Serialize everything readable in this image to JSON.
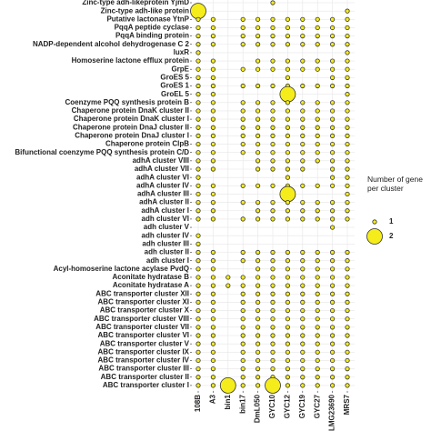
{
  "chart_data": {
    "type": "dotmatrix",
    "categories": [
      "108B",
      "A3",
      "bin1",
      "bin17",
      "DmL050",
      "GYC10",
      "GYC12",
      "GYC19",
      "GYC27",
      "LMG23690",
      "MRS7"
    ],
    "rows": [
      "Zinc-type adh-likeprotein YjmD",
      "Zinc-type adh-like protein",
      "Putative lactonase YtnP",
      "PqqA peptide cyclase",
      "PqqA binding protein",
      "NADP-dependent alcohol dehydrogenase C 2",
      "luxR",
      "Homoserine lactone efflux protein",
      "GrpE",
      "GroES 5",
      "GroES 1",
      "GroEL 5",
      "Coenzyme PQQ synthesis protein B",
      "Chaperone protein DnaK cluster II",
      "Chaperone protein DnaK cluster I",
      "Chaperone protein DnaJ cluster II",
      "Chaperone protein DnaJ cluster I",
      "Chaperone protein ClpB",
      "Bifunctional coenzyme PQQ synthesis protein C/D",
      "adhA cluster VIII",
      "adhA cluster VII",
      "adhA cluster VI",
      "adhA cluster IV",
      "adhA cluster III",
      "adhA cluster II",
      "adhA cluster I",
      "adh cluster VI",
      "adh cluster V",
      "adh cluster IV",
      "adh cluster III",
      "adh cluster II",
      "adh cluster I",
      "Acyl-homoserine lactone acylase PvdQ",
      "Aconitate hydratase B",
      "Aconitate hydratase A",
      "ABC transporter cluster XII",
      "ABC transporter cluster XI",
      "ABC transporter cluster X",
      "ABC transporter cluster VIII",
      "ABC transporter cluster VII",
      "ABC transporter cluster VI",
      "ABC transporter cluster V",
      "ABC transporter cluster IX",
      "ABC transporter cluster IV",
      "ABC transporter cluster III",
      "ABC transporter cluster II",
      "ABC transporter cluster I"
    ],
    "values": [
      [
        null,
        null,
        null,
        null,
        null,
        1,
        null,
        null,
        null,
        null,
        null
      ],
      [
        2,
        null,
        null,
        null,
        null,
        null,
        null,
        null,
        null,
        null,
        1
      ],
      [
        1,
        1,
        null,
        1,
        1,
        1,
        1,
        1,
        1,
        1,
        1
      ],
      [
        1,
        1,
        null,
        1,
        1,
        1,
        1,
        1,
        1,
        1,
        1
      ],
      [
        1,
        1,
        null,
        1,
        1,
        1,
        1,
        1,
        1,
        1,
        1
      ],
      [
        1,
        1,
        null,
        1,
        1,
        1,
        1,
        1,
        1,
        1,
        1
      ],
      [
        1,
        null,
        null,
        null,
        null,
        null,
        null,
        null,
        null,
        null,
        1
      ],
      [
        1,
        1,
        null,
        null,
        1,
        1,
        1,
        1,
        1,
        1,
        1
      ],
      [
        1,
        1,
        null,
        1,
        1,
        1,
        1,
        1,
        1,
        1,
        1
      ],
      [
        1,
        1,
        null,
        null,
        null,
        null,
        1,
        null,
        null,
        1,
        1
      ],
      [
        1,
        1,
        null,
        1,
        1,
        1,
        1,
        1,
        1,
        1,
        1
      ],
      [
        1,
        1,
        null,
        null,
        null,
        null,
        2,
        null,
        null,
        null,
        1
      ],
      [
        1,
        1,
        null,
        1,
        1,
        1,
        1,
        1,
        1,
        1,
        1
      ],
      [
        1,
        1,
        null,
        1,
        1,
        1,
        1,
        1,
        1,
        1,
        1
      ],
      [
        1,
        1,
        null,
        1,
        1,
        1,
        1,
        1,
        1,
        1,
        1
      ],
      [
        1,
        1,
        null,
        1,
        1,
        1,
        1,
        1,
        1,
        1,
        1
      ],
      [
        1,
        1,
        null,
        1,
        1,
        1,
        1,
        1,
        1,
        1,
        1
      ],
      [
        1,
        1,
        null,
        1,
        1,
        1,
        1,
        1,
        1,
        1,
        1
      ],
      [
        1,
        1,
        null,
        1,
        1,
        1,
        1,
        1,
        1,
        1,
        1
      ],
      [
        1,
        1,
        null,
        null,
        1,
        1,
        1,
        1,
        1,
        1,
        1
      ],
      [
        1,
        1,
        null,
        null,
        1,
        1,
        1,
        1,
        null,
        1,
        1
      ],
      [
        1,
        null,
        null,
        null,
        null,
        null,
        1,
        null,
        null,
        1,
        1
      ],
      [
        1,
        1,
        null,
        1,
        1,
        1,
        1,
        1,
        1,
        1,
        1
      ],
      [
        1,
        1,
        null,
        null,
        null,
        null,
        2,
        null,
        null,
        null,
        1
      ],
      [
        1,
        1,
        null,
        1,
        1,
        1,
        1,
        1,
        1,
        1,
        1
      ],
      [
        1,
        1,
        null,
        null,
        1,
        1,
        1,
        1,
        1,
        1,
        1
      ],
      [
        1,
        1,
        null,
        1,
        1,
        1,
        1,
        1,
        1,
        1,
        1
      ],
      [
        null,
        null,
        null,
        null,
        null,
        null,
        null,
        null,
        null,
        1,
        null
      ],
      [
        1,
        null,
        null,
        null,
        null,
        null,
        null,
        null,
        null,
        null,
        null
      ],
      [
        1,
        null,
        null,
        null,
        null,
        null,
        null,
        null,
        null,
        null,
        null
      ],
      [
        1,
        1,
        null,
        1,
        1,
        1,
        1,
        1,
        1,
        1,
        1
      ],
      [
        1,
        1,
        null,
        1,
        1,
        1,
        1,
        1,
        1,
        1,
        1
      ],
      [
        1,
        1,
        null,
        null,
        1,
        1,
        1,
        1,
        1,
        1,
        1
      ],
      [
        1,
        1,
        1,
        1,
        1,
        1,
        1,
        1,
        1,
        1,
        1
      ],
      [
        1,
        1,
        1,
        1,
        1,
        1,
        1,
        1,
        1,
        1,
        1
      ],
      [
        1,
        1,
        null,
        1,
        1,
        1,
        1,
        1,
        1,
        1,
        1
      ],
      [
        1,
        1,
        null,
        1,
        1,
        1,
        1,
        1,
        1,
        1,
        1
      ],
      [
        1,
        1,
        null,
        1,
        1,
        1,
        1,
        1,
        1,
        1,
        1
      ],
      [
        1,
        1,
        null,
        1,
        1,
        1,
        1,
        1,
        1,
        1,
        1
      ],
      [
        1,
        1,
        null,
        1,
        1,
        1,
        1,
        1,
        1,
        1,
        1
      ],
      [
        1,
        1,
        null,
        1,
        1,
        1,
        1,
        1,
        1,
        1,
        1
      ],
      [
        1,
        1,
        null,
        1,
        1,
        1,
        1,
        1,
        1,
        1,
        1
      ],
      [
        1,
        1,
        null,
        1,
        1,
        1,
        1,
        1,
        1,
        1,
        1
      ],
      [
        1,
        1,
        null,
        1,
        1,
        1,
        1,
        1,
        1,
        1,
        1
      ],
      [
        1,
        1,
        null,
        1,
        1,
        1,
        1,
        1,
        1,
        1,
        1
      ],
      [
        1,
        1,
        null,
        1,
        1,
        1,
        1,
        1,
        1,
        1,
        1
      ],
      [
        1,
        1,
        2,
        1,
        1,
        2,
        1,
        1,
        1,
        1,
        1
      ]
    ],
    "color": "#f5ec1c",
    "legend_title": "Number of gene per cluster",
    "legend_sizes": [
      1,
      2
    ],
    "grid": true
  }
}
